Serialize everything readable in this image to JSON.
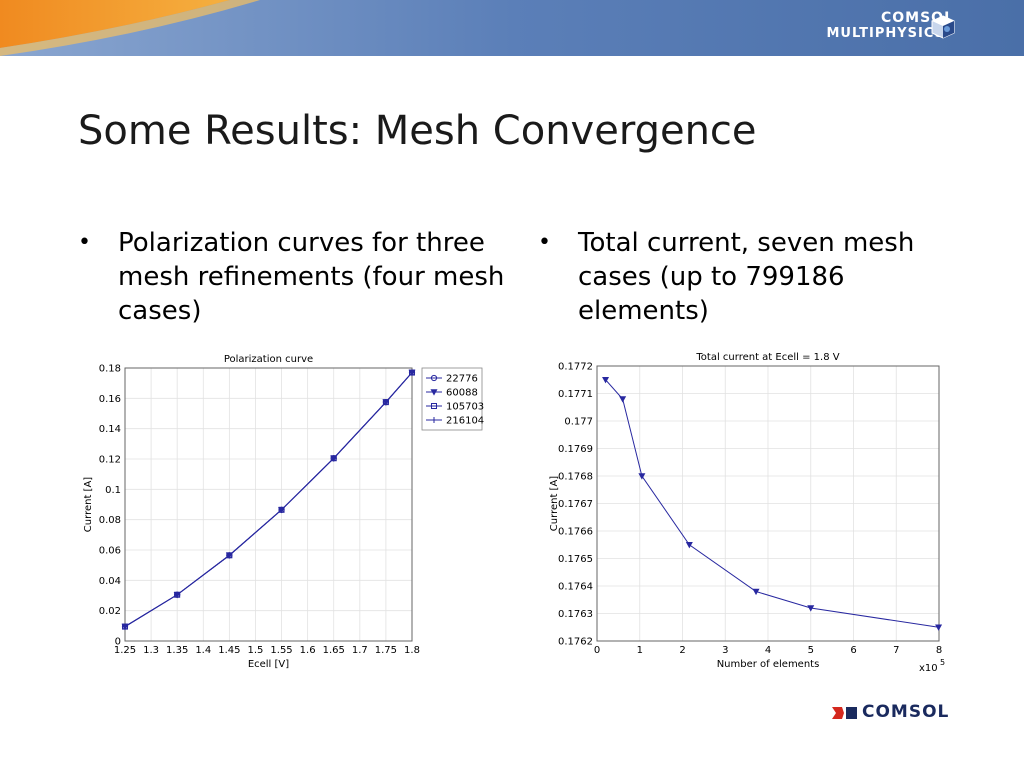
{
  "slide": {
    "title": "Some Results: Mesh Convergence",
    "brand_top_line1": "COMSOL",
    "brand_top_line2": "MULTIPHYSICS",
    "brand_top_reg": "®",
    "brand_bottom": "COMSOL",
    "bullets": [
      {
        "marker": "•",
        "lines": [
          "Polarization curves for three",
          "mesh refinements (four mesh",
          "cases)"
        ]
      },
      {
        "marker": "•",
        "lines": [
          "Total current, seven mesh",
          "cases (up to 799186",
          "elements)"
        ]
      }
    ],
    "colors": {
      "header_blue": "#5b7fb8",
      "header_orange": "#f0a030",
      "series": "#2828a0",
      "brand_red": "#d4281e",
      "brand_navy": "#1a2a5e"
    }
  },
  "chart_data": [
    {
      "type": "line",
      "title": "Polarization curve",
      "xlabel": "Ecell [V]",
      "ylabel": "Current [A]",
      "xlim": [
        1.25,
        1.8
      ],
      "ylim": [
        0,
        0.18
      ],
      "xticks": [
        "1.25",
        "1.3",
        "1.35",
        "1.4",
        "1.45",
        "1.5",
        "1.55",
        "1.6",
        "1.65",
        "1.7",
        "1.75",
        "1.8"
      ],
      "yticks": [
        "0",
        "0.02",
        "0.04",
        "0.06",
        "0.08",
        "0.1",
        "0.12",
        "0.14",
        "0.16",
        "0.18"
      ],
      "grid": true,
      "legend": "outside-right",
      "x": [
        1.25,
        1.35,
        1.45,
        1.55,
        1.65,
        1.75,
        1.8
      ],
      "series": [
        {
          "name": "22776",
          "marker": "circle",
          "values": [
            0.0095,
            0.0305,
            0.0565,
            0.0865,
            0.1205,
            0.1575,
            0.177
          ]
        },
        {
          "name": "60088",
          "marker": "triangle-down",
          "values": [
            0.0095,
            0.0305,
            0.0565,
            0.0865,
            0.1205,
            0.1575,
            0.177
          ]
        },
        {
          "name": "105703",
          "marker": "square",
          "values": [
            0.0095,
            0.0305,
            0.0565,
            0.0865,
            0.1205,
            0.1575,
            0.177
          ]
        },
        {
          "name": "216104",
          "marker": "plus",
          "values": [
            0.0095,
            0.0305,
            0.0565,
            0.0865,
            0.1205,
            0.1575,
            0.177
          ]
        }
      ]
    },
    {
      "type": "line",
      "title": "Total current at Ecell = 1.8 V",
      "xlabel": "Number of elements",
      "ylabel": "Current [A]",
      "xlim": [
        0,
        8
      ],
      "ylim": [
        0.1762,
        0.1772
      ],
      "x_multiplier": "x10",
      "x_multiplier_exp": "5",
      "xticks": [
        "0",
        "1",
        "2",
        "3",
        "4",
        "5",
        "6",
        "7",
        "8"
      ],
      "yticks": [
        "0.1762",
        "0.1763",
        "0.1764",
        "0.1765",
        "0.1766",
        "0.1767",
        "0.1768",
        "0.1769",
        "0.177",
        "0.1771",
        "0.1772"
      ],
      "grid": true,
      "series": [
        {
          "marker": "triangle-down",
          "x": [
            0.2,
            0.6,
            1.05,
            2.16,
            3.72,
            5.0,
            7.99
          ],
          "values": [
            0.17715,
            0.17708,
            0.1768,
            0.17655,
            0.17638,
            0.17632,
            0.17625
          ]
        }
      ]
    }
  ]
}
